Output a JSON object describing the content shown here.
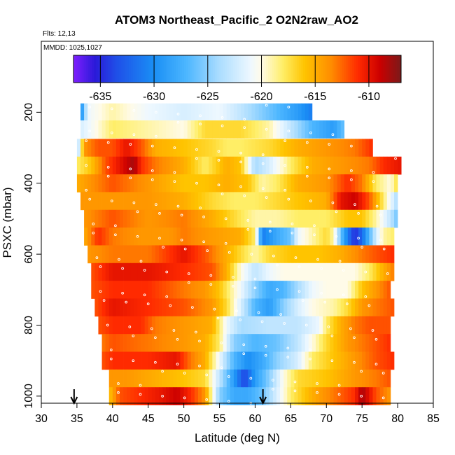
{
  "chart_data": {
    "type": "heatmap",
    "title": "ATOM3 Northeast_Pacific_2 O2N2raw_AO2",
    "flights_label": "Flts: 12,13",
    "date_label": "MMDD: 1025,1027",
    "xlabel": "Latitude (deg N)",
    "ylabel": "PSXC (mbar)",
    "xlim": [
      30,
      85
    ],
    "ylim": [
      1020,
      0
    ],
    "xticks": [
      30,
      35,
      40,
      45,
      50,
      55,
      60,
      65,
      70,
      75,
      80,
      85
    ],
    "yticks": [
      200,
      400,
      600,
      800,
      1000
    ],
    "colorbar": {
      "range": [
        -637.5,
        -607
      ],
      "ticks": [
        -635,
        -630,
        -625,
        -620,
        -615,
        -610
      ],
      "stops": [
        {
          "v": -637.5,
          "c": "#7f1fff"
        },
        {
          "v": -635.5,
          "c": "#2a1ad8"
        },
        {
          "v": -633.5,
          "c": "#1f4fe8"
        },
        {
          "v": -630,
          "c": "#1a8ff5"
        },
        {
          "v": -627,
          "c": "#4cb6ff"
        },
        {
          "v": -624,
          "c": "#a9dcff"
        },
        {
          "v": -621,
          "c": "#eef8ff"
        },
        {
          "v": -620,
          "c": "#fffbe8"
        },
        {
          "v": -618,
          "c": "#ffee66"
        },
        {
          "v": -616,
          "c": "#ffc400"
        },
        {
          "v": -613.5,
          "c": "#ff8c00"
        },
        {
          "v": -611,
          "c": "#ff2a00"
        },
        {
          "v": -609,
          "c": "#cc0000"
        },
        {
          "v": -607,
          "c": "#7a1a1a"
        }
      ]
    },
    "arrows_latitude": [
      34.6,
      61.1
    ],
    "bin_width_deg": 0.5,
    "profiles": [
      {
        "p": 200,
        "lat0": 35.5,
        "lat1": 68.0,
        "knots": [
          [
            35.5,
            -631
          ],
          [
            36.5,
            -621
          ],
          [
            40,
            -619
          ],
          [
            45,
            -621
          ],
          [
            50,
            -622
          ],
          [
            55,
            -621
          ],
          [
            58,
            -623
          ],
          [
            62,
            -626
          ],
          [
            66,
            -629
          ],
          [
            68,
            -631
          ]
        ]
      },
      {
        "p": 248,
        "lat0": 35.5,
        "lat1": 72.5,
        "knots": [
          [
            35.5,
            -622
          ],
          [
            40,
            -618
          ],
          [
            45,
            -619
          ],
          [
            50,
            -620
          ],
          [
            53,
            -617
          ],
          [
            58,
            -617
          ],
          [
            62,
            -619
          ],
          [
            65,
            -623
          ],
          [
            68,
            -627
          ],
          [
            71,
            -629
          ],
          [
            72.5,
            -626
          ]
        ]
      },
      {
        "p": 300,
        "lat0": 35.0,
        "lat1": 76.5,
        "knots": [
          [
            35,
            -625
          ],
          [
            36,
            -614
          ],
          [
            38,
            -612
          ],
          [
            40,
            -612
          ],
          [
            42,
            -610
          ],
          [
            44,
            -612
          ],
          [
            46,
            -615
          ],
          [
            50,
            -616
          ],
          [
            54,
            -617
          ],
          [
            56,
            -618
          ],
          [
            58,
            -618
          ],
          [
            62,
            -617
          ],
          [
            66,
            -615
          ],
          [
            70,
            -614
          ],
          [
            74,
            -613
          ],
          [
            76.5,
            -611
          ]
        ]
      },
      {
        "p": 350,
        "lat0": 35.0,
        "lat1": 80.5,
        "knots": [
          [
            35,
            -618
          ],
          [
            37,
            -616
          ],
          [
            39,
            -612
          ],
          [
            41,
            -610
          ],
          [
            43,
            -608
          ],
          [
            44,
            -611
          ],
          [
            46,
            -613
          ],
          [
            50,
            -615
          ],
          [
            53,
            -618
          ],
          [
            56,
            -615
          ],
          [
            58,
            -616
          ],
          [
            60,
            -624
          ],
          [
            62,
            -622
          ],
          [
            65,
            -618
          ],
          [
            68,
            -615
          ],
          [
            72,
            -614
          ],
          [
            76,
            -613
          ],
          [
            78,
            -611
          ],
          [
            80.5,
            -610
          ]
        ]
      },
      {
        "p": 400,
        "lat0": 35.0,
        "lat1": 80.0,
        "knots": [
          [
            35,
            -615
          ],
          [
            40,
            -612
          ],
          [
            45,
            -614
          ],
          [
            50,
            -616
          ],
          [
            53,
            -616
          ],
          [
            56,
            -615
          ],
          [
            59,
            -616
          ],
          [
            61,
            -619
          ],
          [
            63,
            -618
          ],
          [
            66,
            -615
          ],
          [
            70,
            -614
          ],
          [
            72,
            -612
          ],
          [
            73,
            -611
          ],
          [
            75,
            -613
          ],
          [
            77,
            -618
          ],
          [
            79,
            -620
          ],
          [
            80,
            -617
          ]
        ]
      },
      {
        "p": 450,
        "lat0": 35.5,
        "lat1": 80.0,
        "knots": [
          [
            35.5,
            -614
          ],
          [
            40,
            -614
          ],
          [
            45,
            -614
          ],
          [
            50,
            -615
          ],
          [
            54,
            -617
          ],
          [
            57,
            -618
          ],
          [
            60,
            -618
          ],
          [
            63,
            -617
          ],
          [
            66,
            -616
          ],
          [
            70,
            -615
          ],
          [
            72,
            -610
          ],
          [
            74,
            -609
          ],
          [
            76,
            -612
          ],
          [
            78,
            -618
          ],
          [
            80,
            -624
          ]
        ]
      },
      {
        "p": 500,
        "lat0": 36.0,
        "lat1": 80.0,
        "knots": [
          [
            36,
            -614
          ],
          [
            40,
            -612
          ],
          [
            45,
            -614
          ],
          [
            50,
            -613
          ],
          [
            54,
            -615
          ],
          [
            57,
            -617
          ],
          [
            60,
            -619
          ],
          [
            63,
            -619
          ],
          [
            66,
            -618
          ],
          [
            70,
            -618
          ],
          [
            73,
            -616
          ],
          [
            75,
            -616
          ],
          [
            77,
            -619
          ],
          [
            79,
            -623
          ],
          [
            80,
            -626
          ]
        ]
      },
      {
        "p": 550,
        "lat0": 36.0,
        "lat1": 79.5,
        "knots": [
          [
            36,
            -615
          ],
          [
            38,
            -611
          ],
          [
            40,
            -613
          ],
          [
            44,
            -614
          ],
          [
            48,
            -614
          ],
          [
            50,
            -613
          ],
          [
            53,
            -614
          ],
          [
            58,
            -615
          ],
          [
            60,
            -618
          ],
          [
            61,
            -631
          ],
          [
            63,
            -628
          ],
          [
            65,
            -626
          ],
          [
            66,
            -621
          ],
          [
            68,
            -619
          ],
          [
            70,
            -617
          ],
          [
            71,
            -619
          ],
          [
            72,
            -626
          ],
          [
            73,
            -631
          ],
          [
            74,
            -635
          ],
          [
            75,
            -632
          ],
          [
            76,
            -627
          ],
          [
            77,
            -622
          ],
          [
            78,
            -619
          ],
          [
            79.5,
            -618
          ]
        ]
      },
      {
        "p": 600,
        "lat0": 36.5,
        "lat1": 79.5,
        "knots": [
          [
            36.5,
            -614
          ],
          [
            40,
            -613
          ],
          [
            45,
            -613
          ],
          [
            50,
            -610
          ],
          [
            53,
            -612
          ],
          [
            57,
            -616
          ],
          [
            60,
            -619
          ],
          [
            62,
            -617
          ],
          [
            65,
            -616
          ],
          [
            69,
            -616
          ],
          [
            72,
            -615
          ],
          [
            75,
            -613
          ],
          [
            77,
            -612
          ],
          [
            79.5,
            -611
          ]
        ]
      },
      {
        "p": 650,
        "lat0": 37.0,
        "lat1": 79.5,
        "knots": [
          [
            37,
            -612
          ],
          [
            40,
            -610
          ],
          [
            45,
            -610
          ],
          [
            50,
            -611
          ],
          [
            54,
            -612
          ],
          [
            56,
            -615
          ],
          [
            58,
            -620
          ],
          [
            60,
            -623
          ],
          [
            62,
            -621
          ],
          [
            64,
            -620
          ],
          [
            68,
            -620
          ],
          [
            72,
            -620
          ],
          [
            74,
            -620
          ],
          [
            76,
            -618
          ],
          [
            78,
            -615
          ],
          [
            79.5,
            -613
          ]
        ]
      },
      {
        "p": 700,
        "lat0": 37.0,
        "lat1": 79.0,
        "knots": [
          [
            37,
            -612
          ],
          [
            40,
            -611
          ],
          [
            45,
            -611
          ],
          [
            50,
            -613
          ],
          [
            53,
            -614
          ],
          [
            55,
            -616
          ],
          [
            58,
            -621
          ],
          [
            60,
            -625
          ],
          [
            62,
            -628
          ],
          [
            64,
            -627
          ],
          [
            66,
            -624
          ],
          [
            68,
            -621
          ],
          [
            70,
            -620
          ],
          [
            73,
            -620
          ],
          [
            75,
            -616
          ],
          [
            77,
            -614
          ],
          [
            79,
            -612
          ]
        ]
      },
      {
        "p": 750,
        "lat0": 37.5,
        "lat1": 79.5,
        "knots": [
          [
            37.5,
            -612
          ],
          [
            40,
            -610
          ],
          [
            45,
            -611
          ],
          [
            50,
            -612
          ],
          [
            54,
            -614
          ],
          [
            56,
            -617
          ],
          [
            58,
            -622
          ],
          [
            60,
            -627
          ],
          [
            62,
            -629
          ],
          [
            64,
            -625
          ],
          [
            66,
            -622
          ],
          [
            68,
            -620
          ],
          [
            71,
            -619
          ],
          [
            73,
            -617
          ],
          [
            75,
            -614
          ],
          [
            77,
            -613
          ],
          [
            79.5,
            -612
          ]
        ]
      },
      {
        "p": 800,
        "lat0": 38.0,
        "lat1": 79.0,
        "knots": [
          [
            38,
            -612
          ],
          [
            40,
            -611
          ],
          [
            44,
            -611
          ],
          [
            46,
            -613
          ],
          [
            50,
            -614
          ],
          [
            54,
            -615
          ],
          [
            56,
            -621
          ],
          [
            58,
            -624
          ],
          [
            62,
            -623
          ],
          [
            66,
            -623
          ],
          [
            69,
            -621
          ],
          [
            70,
            -618
          ],
          [
            72,
            -615
          ],
          [
            74,
            -613
          ],
          [
            76,
            -612
          ],
          [
            79,
            -612
          ]
        ]
      },
      {
        "p": 850,
        "lat0": 38.5,
        "lat1": 79.0,
        "knots": [
          [
            38.5,
            -613
          ],
          [
            40,
            -612
          ],
          [
            45,
            -613
          ],
          [
            50,
            -614
          ],
          [
            53,
            -615
          ],
          [
            55,
            -618
          ],
          [
            57,
            -625
          ],
          [
            60,
            -627
          ],
          [
            63,
            -626
          ],
          [
            66,
            -623
          ],
          [
            68,
            -620
          ],
          [
            70,
            -617
          ],
          [
            73,
            -614
          ],
          [
            75,
            -613
          ],
          [
            77,
            -612
          ],
          [
            79,
            -611
          ]
        ]
      },
      {
        "p": 900,
        "lat0": 38.5,
        "lat1": 79.5,
        "knots": [
          [
            38.5,
            -612
          ],
          [
            40,
            -611
          ],
          [
            45,
            -611
          ],
          [
            49,
            -610
          ],
          [
            51,
            -613
          ],
          [
            53,
            -615
          ],
          [
            55,
            -621
          ],
          [
            57,
            -627
          ],
          [
            59,
            -630
          ],
          [
            61,
            -628
          ],
          [
            63,
            -625
          ],
          [
            66,
            -622
          ],
          [
            68,
            -618
          ],
          [
            71,
            -616
          ],
          [
            74,
            -614
          ],
          [
            77,
            -612
          ],
          [
            79.5,
            -611
          ]
        ]
      },
      {
        "p": 950,
        "lat0": 39.5,
        "lat1": 79.0,
        "knots": [
          [
            39.5,
            -614
          ],
          [
            42,
            -614
          ],
          [
            46,
            -615
          ],
          [
            50,
            -616
          ],
          [
            53,
            -617
          ],
          [
            55,
            -623
          ],
          [
            57,
            -629
          ],
          [
            58.5,
            -634
          ],
          [
            60,
            -629
          ],
          [
            62,
            -625
          ],
          [
            64,
            -620
          ],
          [
            66,
            -617
          ],
          [
            70,
            -616
          ],
          [
            74,
            -614
          ],
          [
            77,
            -613
          ],
          [
            79,
            -612
          ]
        ]
      },
      {
        "p": 1000,
        "lat0": 39.5,
        "lat1": 79.0,
        "knots": [
          [
            39.5,
            -616
          ],
          [
            41,
            -612
          ],
          [
            44,
            -611
          ],
          [
            47,
            -610
          ],
          [
            49,
            -609
          ],
          [
            51,
            -611
          ],
          [
            53,
            -614
          ],
          [
            55,
            -625
          ],
          [
            57,
            -628
          ],
          [
            59,
            -628
          ],
          [
            61,
            -626
          ],
          [
            63,
            -622
          ],
          [
            65,
            -618
          ],
          [
            68,
            -615
          ],
          [
            71,
            -613
          ],
          [
            74,
            -611
          ],
          [
            75,
            -608
          ],
          [
            77,
            -612
          ],
          [
            79,
            -614
          ]
        ]
      }
    ]
  }
}
